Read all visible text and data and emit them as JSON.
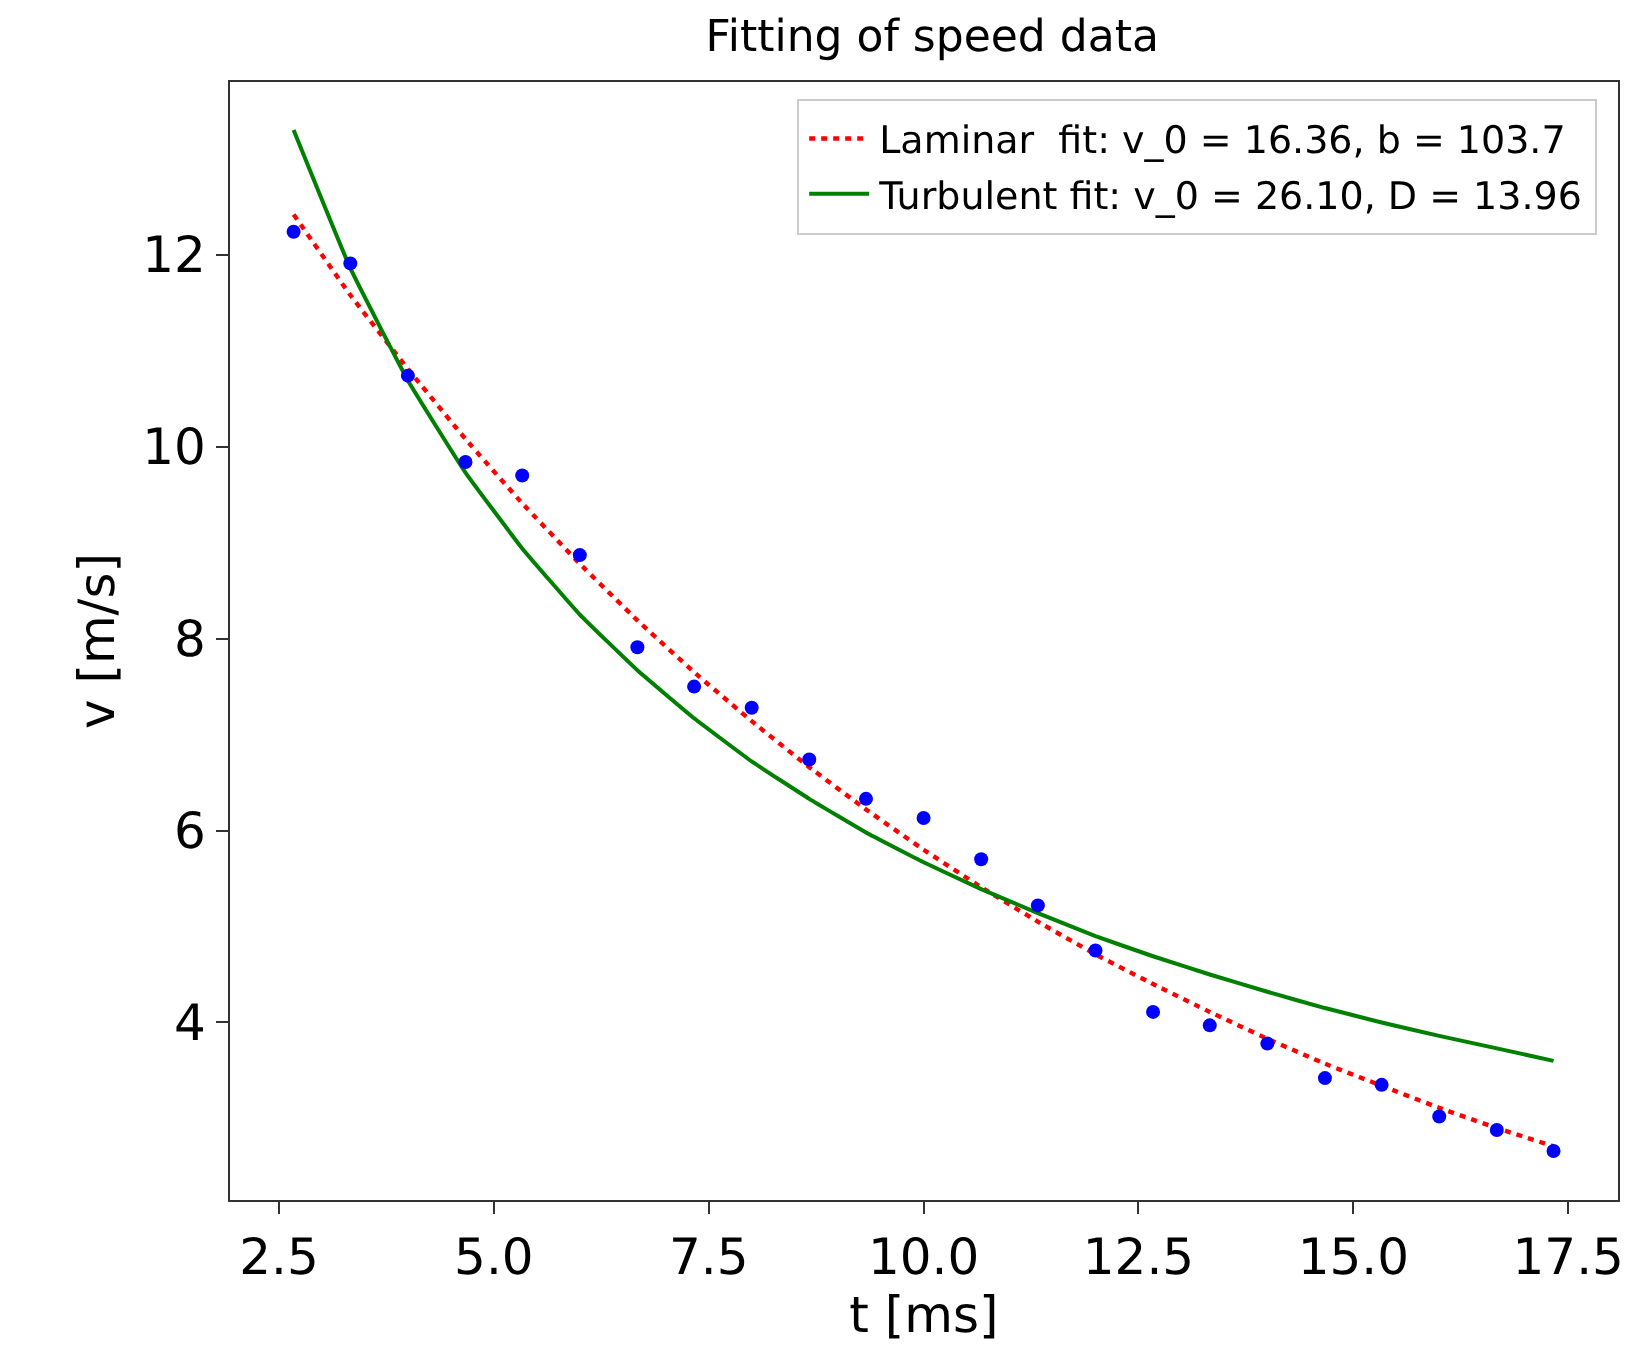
{
  "chart_data": {
    "type": "line",
    "title": "Fitting of speed data",
    "xlabel": "t [ms]",
    "ylabel": "v [m/s]",
    "x": [
      2.67,
      3.33,
      4.0,
      4.67,
      5.33,
      6.0,
      6.67,
      7.33,
      8.0,
      8.67,
      9.33,
      10.0,
      10.67,
      11.33,
      12.0,
      12.67,
      13.33,
      14.0,
      14.67,
      15.33,
      16.0,
      16.67,
      17.33
    ],
    "series": [
      {
        "type": "scatter",
        "marker": "circle",
        "color": "#0000ff",
        "values": [
          12.24,
          11.91,
          10.74,
          9.84,
          9.7,
          8.87,
          7.91,
          7.5,
          7.28,
          6.74,
          6.33,
          6.13,
          5.7,
          5.22,
          4.75,
          4.11,
          3.97,
          3.78,
          3.42,
          3.35,
          3.02,
          2.88,
          2.66
        ]
      },
      {
        "name": "Laminar  fit: v_0 = 16.36, b = 103.7",
        "color": "#ff0000",
        "line_style": "dotted",
        "values": [
          12.42,
          11.58,
          10.81,
          10.08,
          9.41,
          8.78,
          8.19,
          7.65,
          7.14,
          6.66,
          6.22,
          5.8,
          5.41,
          5.05,
          4.71,
          4.4,
          4.11,
          3.83,
          3.57,
          3.34,
          3.11,
          2.9,
          2.71
        ]
      },
      {
        "name": "Turbulent fit: v_0 = 26.10, D = 13.96",
        "color": "#008000",
        "line_style": "solid",
        "values": [
          13.3,
          11.86,
          10.69,
          9.73,
          8.94,
          8.25,
          7.67,
          7.17,
          6.72,
          6.33,
          5.98,
          5.67,
          5.39,
          5.14,
          4.9,
          4.69,
          4.5,
          4.32,
          4.15,
          4.0,
          3.86,
          3.73,
          3.6
        ]
      }
    ],
    "xlim": [
      1.93,
      18.08
    ],
    "ylim": [
      2.15,
      13.8
    ],
    "xticks": [
      {
        "value": 2.5,
        "label": "2.5"
      },
      {
        "value": 5,
        "label": "5.0"
      },
      {
        "value": 7.5,
        "label": "7.5"
      },
      {
        "value": 10,
        "label": "10.0"
      },
      {
        "value": 12.5,
        "label": "12.5"
      },
      {
        "value": 15,
        "label": "15.0"
      },
      {
        "value": 17.5,
        "label": "17.5"
      }
    ],
    "yticks": [
      4,
      6,
      8,
      10,
      12
    ],
    "legend": "top right"
  }
}
